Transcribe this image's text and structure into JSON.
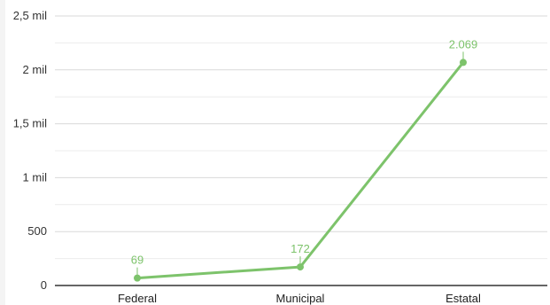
{
  "chart_data": {
    "type": "line",
    "title": "",
    "xlabel": "",
    "ylabel": "",
    "categories": [
      "Federal",
      "Municipal",
      "Estatal"
    ],
    "series": [
      {
        "values": [
          69,
          172,
          2069
        ],
        "data_labels": [
          "69",
          "172",
          "2.069"
        ],
        "color": "#7dc36b"
      }
    ],
    "ylim": [
      0,
      2500
    ],
    "y_ticks": [
      {
        "value": 0,
        "label": "0"
      },
      {
        "value": 500,
        "label": "500"
      },
      {
        "value": 1000,
        "label": "1 mil"
      },
      {
        "value": 1500,
        "label": "1,5 mil"
      },
      {
        "value": 2000,
        "label": "2 mil"
      },
      {
        "value": 2500,
        "label": "2,5 mil"
      }
    ],
    "grid": true,
    "minor_grid": true,
    "legend": "none"
  }
}
